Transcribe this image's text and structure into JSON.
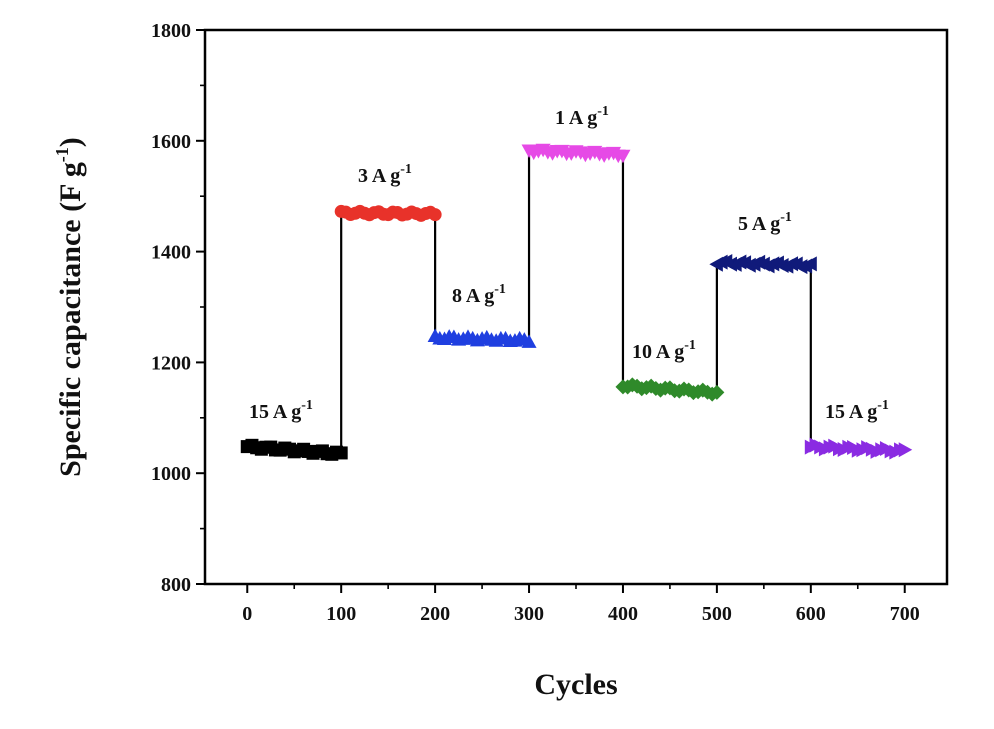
{
  "chart_data": {
    "type": "scatter",
    "xlabel": "Cycles",
    "ylabel": "Specific capacitance (F g",
    "ylabel_sup": "-1",
    "ylabel_close": ")",
    "xlim": [
      -45,
      745
    ],
    "ylim": [
      800,
      1800
    ],
    "x_ticks": [
      0,
      100,
      200,
      300,
      400,
      500,
      600,
      700
    ],
    "x_tick_labels": [
      "0",
      "100",
      "200",
      "300",
      "400",
      "500",
      "600",
      "700"
    ],
    "y_ticks": [
      800,
      1000,
      1200,
      1400,
      1600,
      1800
    ],
    "y_tick_labels": [
      "800",
      "1000",
      "1200",
      "1400",
      "1600",
      "1800"
    ],
    "grid": false,
    "legend": "none",
    "connector_color": "#000000",
    "series": [
      {
        "label": "15 A g",
        "label_sup": "-1",
        "color": "#000000",
        "marker": "square",
        "x_start": 0,
        "x_end": 100,
        "y_start": 1048,
        "y_end": 1035
      },
      {
        "label": "3 A g",
        "label_sup": "-1",
        "color": "#e8322a",
        "marker": "circle",
        "x_start": 100,
        "x_end": 200,
        "y_start": 1470,
        "y_end": 1468
      },
      {
        "label": "8 A g",
        "label_sup": "-1",
        "color": "#1f3fe0",
        "marker": "triangle-up",
        "x_start": 200,
        "x_end": 300,
        "y_start": 1245,
        "y_end": 1240
      },
      {
        "label": "1 A g",
        "label_sup": "-1",
        "color": "#e64ae6",
        "marker": "triangle-down",
        "x_start": 300,
        "x_end": 400,
        "y_start": 1582,
        "y_end": 1575
      },
      {
        "label": "10 A g",
        "label_sup": "-1",
        "color": "#2f8a2a",
        "marker": "diamond",
        "x_start": 400,
        "x_end": 500,
        "y_start": 1158,
        "y_end": 1145
      },
      {
        "label": "5 A g",
        "label_sup": "-1",
        "color": "#101a7a",
        "marker": "triangle-left",
        "x_start": 500,
        "x_end": 600,
        "y_start": 1380,
        "y_end": 1375
      },
      {
        "label": "15 A g",
        "label_sup": "-1",
        "color": "#8a2be2",
        "marker": "triangle-right",
        "x_start": 600,
        "x_end": 700,
        "y_start": 1048,
        "y_end": 1040
      }
    ]
  }
}
